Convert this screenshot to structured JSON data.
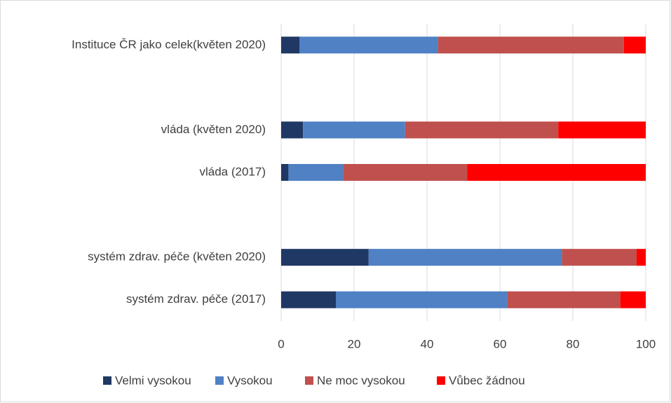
{
  "chart_data": {
    "type": "stacked_barh",
    "categories": [
      "Instituce ČR jako celek(květen 2020)",
      null,
      "vláda (květen 2020)",
      "vláda (2017)",
      null,
      "systém zdrav. péče (květen 2020)",
      "systém zdrav. péče (2017)"
    ],
    "series": [
      {
        "name": "Velmi vysokou",
        "color": "#203864",
        "values": [
          5,
          null,
          6,
          2,
          null,
          24,
          15
        ]
      },
      {
        "name": "Vysokou",
        "color": "#4f81c4",
        "values": [
          38,
          null,
          28,
          15,
          null,
          53,
          47
        ]
      },
      {
        "name": "Ne moc vysokou",
        "color": "#c0504d",
        "values": [
          51,
          null,
          42,
          34,
          null,
          20.5,
          31
        ]
      },
      {
        "name": "Vůbec žádnou",
        "color": "#ff0000",
        "values": [
          6,
          null,
          24,
          49,
          null,
          2.5,
          7
        ]
      }
    ],
    "xlim": [
      0,
      100
    ],
    "xticks": [
      0,
      20,
      40,
      60,
      80,
      100
    ],
    "grid": true,
    "legend": "bottom"
  }
}
